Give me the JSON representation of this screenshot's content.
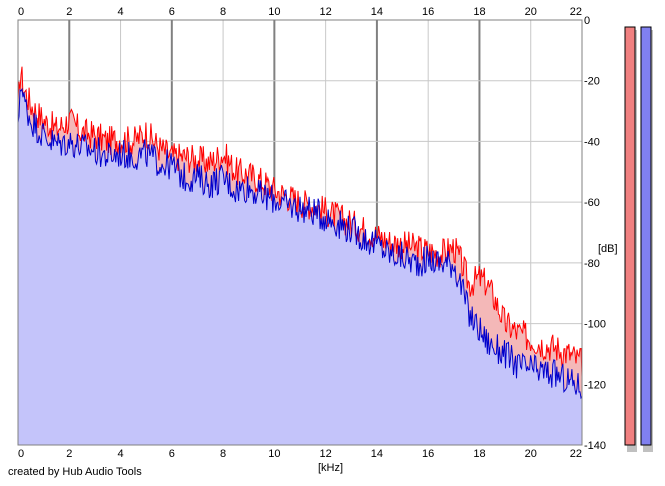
{
  "chart_data": {
    "type": "area",
    "title": "",
    "xlabel": "[kHz]",
    "ylabel": "[dB]",
    "xlim": [
      0,
      22
    ],
    "ylim": [
      -140,
      0
    ],
    "xticks": [
      0,
      2,
      4,
      6,
      8,
      10,
      12,
      14,
      16,
      18,
      20,
      22
    ],
    "yticks": [
      0,
      -20,
      -40,
      -60,
      -80,
      -100,
      -120,
      -140
    ],
    "x_tick_labels": [
      "0",
      "2",
      "4",
      "6",
      "8",
      "10",
      "12",
      "14",
      "16",
      "18",
      "20",
      "22"
    ],
    "y_tick_labels": [
      "0",
      "-20",
      "-40",
      "-60",
      "-80",
      "-100",
      "-120",
      "-140"
    ],
    "grid": true,
    "series": [
      {
        "color": "#ff0000",
        "fill": "#f4b8b8",
        "x": [
          0,
          0.1,
          0.2,
          0.5,
          1,
          1.5,
          2,
          2.5,
          3,
          3.5,
          4,
          4.5,
          5,
          5.5,
          6,
          6.5,
          7,
          7.5,
          8,
          8.5,
          9,
          9.5,
          10,
          10.5,
          11,
          11.5,
          12,
          12.5,
          13,
          13.5,
          14,
          14.5,
          15,
          15.5,
          16,
          16.5,
          17,
          17.3,
          17.6,
          18,
          18.3,
          18.6,
          19,
          19.5,
          20,
          20.5,
          21,
          21.5,
          22
        ],
        "values": [
          -30,
          -16,
          -22,
          -28,
          -33,
          -36,
          -33,
          -37,
          -38,
          -40,
          -39,
          -40,
          -37,
          -42,
          -45,
          -45,
          -46,
          -47,
          -44,
          -50,
          -51,
          -53,
          -56,
          -58,
          -60,
          -61,
          -63,
          -65,
          -67,
          -69,
          -71,
          -73,
          -74,
          -75,
          -76,
          -77,
          -75,
          -80,
          -87,
          -85,
          -87,
          -92,
          -100,
          -103,
          -105,
          -107,
          -108,
          -110,
          -113
        ]
      },
      {
        "color": "#0000cc",
        "fill": "#c4c4fa",
        "x": [
          0,
          0.1,
          0.2,
          0.5,
          1,
          1.5,
          2,
          2.5,
          3,
          3.5,
          4,
          4.5,
          5,
          5.5,
          6,
          6.5,
          7,
          7.5,
          8,
          8.5,
          9,
          9.5,
          10,
          10.5,
          11,
          11.5,
          12,
          12.5,
          13,
          13.5,
          14,
          14.5,
          15,
          15.5,
          16,
          16.5,
          17,
          17.3,
          17.6,
          18,
          18.3,
          18.6,
          19,
          19.5,
          20,
          20.5,
          21,
          21.5,
          22
        ],
        "values": [
          -38,
          -18,
          -26,
          -33,
          -38,
          -41,
          -40,
          -42,
          -43,
          -45,
          -44,
          -45,
          -44,
          -47,
          -48,
          -52,
          -52,
          -54,
          -52,
          -56,
          -55,
          -58,
          -59,
          -61,
          -62,
          -63,
          -65,
          -67,
          -69,
          -72,
          -74,
          -77,
          -78,
          -80,
          -79,
          -80,
          -80,
          -88,
          -97,
          -102,
          -106,
          -108,
          -110,
          -114,
          -115,
          -116,
          -117,
          -119,
          -121
        ]
      }
    ],
    "level_meters": [
      {
        "color": "#f08080",
        "level": 1.0
      },
      {
        "color": "#8080f0",
        "level": 1.0
      }
    ]
  },
  "footer": {
    "credit": "created by Hub Audio Tools"
  }
}
